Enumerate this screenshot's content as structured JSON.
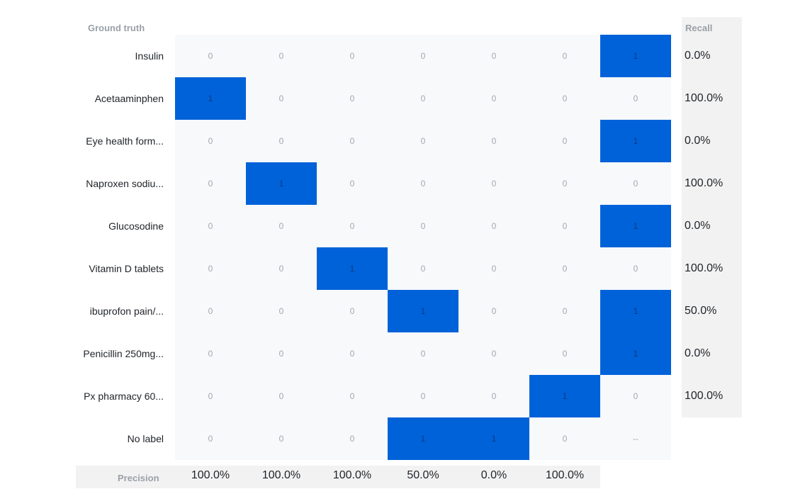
{
  "chart_data": {
    "type": "heatmap",
    "ylabel": "Ground truth",
    "recall_label": "Recall",
    "precision_label": "Precision",
    "rows": [
      "Insulin",
      "Acetaaminphen",
      "Eye health form...",
      "Naproxen sodiu...",
      "Glucosodine",
      "Vitamin D tablets",
      "ibuprofon pain/...",
      "Penicillin 250mg...",
      "Px pharmacy 60...",
      "No label"
    ],
    "values": [
      [
        "0",
        "0",
        "0",
        "0",
        "0",
        "0",
        "1"
      ],
      [
        "1",
        "0",
        "0",
        "0",
        "0",
        "0",
        "0"
      ],
      [
        "0",
        "0",
        "0",
        "0",
        "0",
        "0",
        "1"
      ],
      [
        "0",
        "1",
        "0",
        "0",
        "0",
        "0",
        "0"
      ],
      [
        "0",
        "0",
        "0",
        "0",
        "0",
        "0",
        "1"
      ],
      [
        "0",
        "0",
        "1",
        "0",
        "0",
        "0",
        "0"
      ],
      [
        "0",
        "0",
        "0",
        "1",
        "0",
        "0",
        "1"
      ],
      [
        "0",
        "0",
        "0",
        "0",
        "0",
        "0",
        "1"
      ],
      [
        "0",
        "0",
        "0",
        "0",
        "0",
        "1",
        "0"
      ],
      [
        "0",
        "0",
        "0",
        "1",
        "1",
        "0",
        "--"
      ]
    ],
    "recall": [
      "0.0%",
      "100.0%",
      "0.0%",
      "100.0%",
      "0.0%",
      "100.0%",
      "50.0%",
      "0.0%",
      "100.0%"
    ],
    "precision": [
      "100.0%",
      "100.0%",
      "100.0%",
      "50.0%",
      "0.0%",
      "100.0%"
    ],
    "colors": {
      "hit": "#0062d9",
      "panel": "#f2f2f2",
      "matrix_bg": "#f8f9fb"
    }
  }
}
